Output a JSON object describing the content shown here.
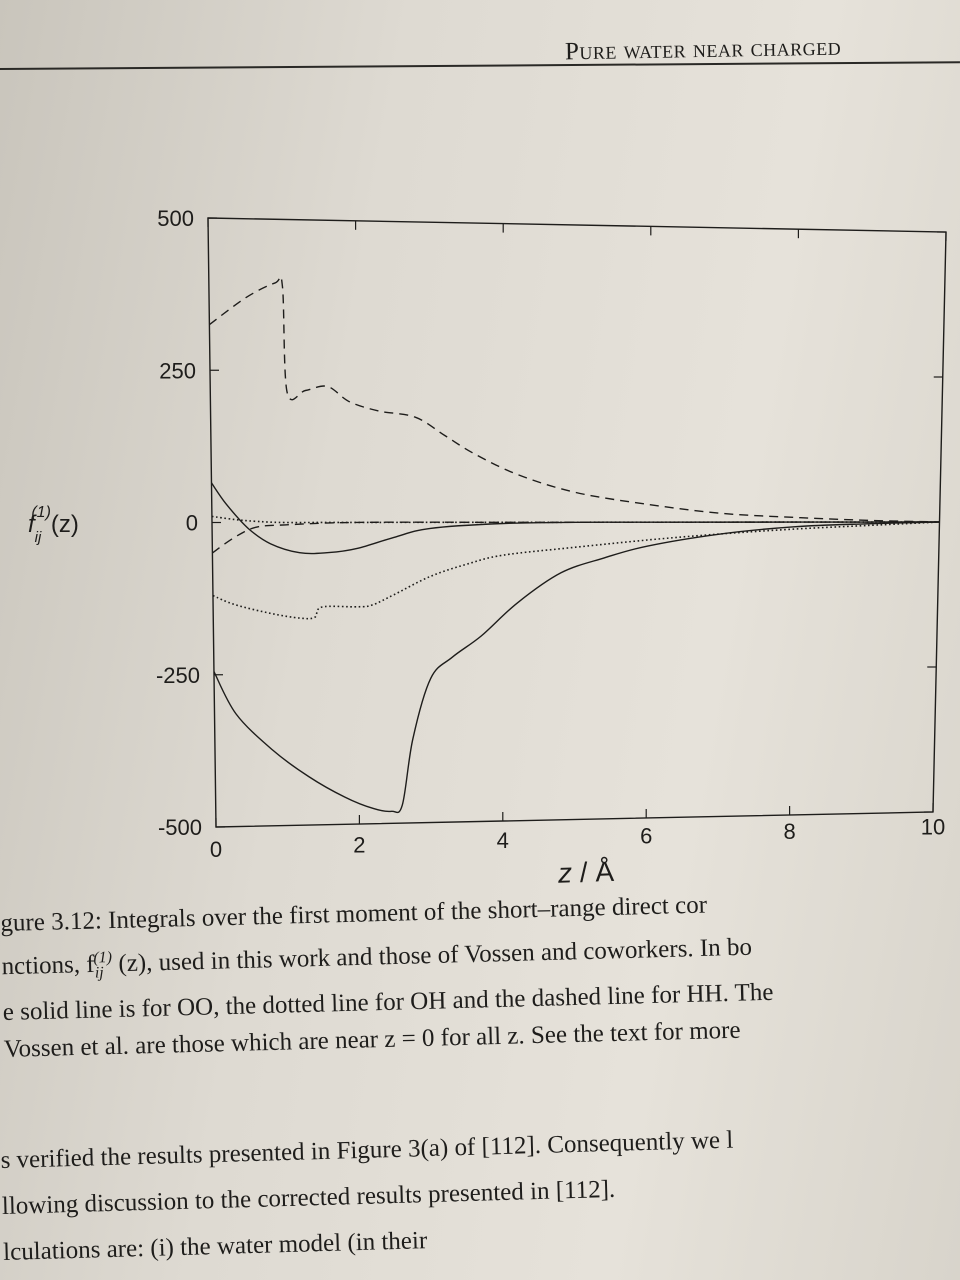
{
  "page": {
    "running_head": "Pure water near charged",
    "caption_lines": [
      "gure 3.12: Integrals over the first moment of the short–range direct cor",
      "nctions, f",
      "e solid line is for OO, the dotted line for OH and the dashed line for HH. The",
      "Vossen et al. are those which are near z = 0 for all z. See the text for more"
    ],
    "caption_fn_tail": "(z), used in this work and those of Vossen and coworkers. In bo",
    "body_lines": [
      "s verified the results presented in Figure 3(a) of [112]. Consequently we l",
      "llowing discussion to the corrected results presented in [112].",
      "lculations are: (i) the water model (in their"
    ]
  },
  "chart_data": {
    "type": "line",
    "ylabel": "f_ij^(1)(z)",
    "xlabel": "z / Å",
    "xlim": [
      0,
      10
    ],
    "ylim": [
      -500,
      500
    ],
    "x_ticks": [
      "0",
      "2",
      "4",
      "6",
      "8",
      "10"
    ],
    "y_ticks": [
      "500",
      "250",
      "0",
      "-250",
      "-500"
    ],
    "grid": false,
    "series": [
      {
        "style": "solid",
        "x": [
          0,
          0.3,
          0.8,
          1.3,
          1.8,
          2.2,
          2.45,
          2.6,
          2.75,
          3.0,
          3.3,
          3.7,
          4.2,
          4.8,
          5.4,
          6.0,
          7.0,
          8.0,
          9.0,
          10.0
        ],
        "y": [
          -245,
          -315,
          -375,
          -420,
          -455,
          -475,
          -480,
          -470,
          -360,
          -260,
          -225,
          -190,
          -135,
          -85,
          -60,
          -40,
          -20,
          -8,
          -3,
          0
        ]
      },
      {
        "style": "solid",
        "x": [
          0,
          0.2,
          0.5,
          0.8,
          1.2,
          1.6,
          2.0,
          2.5,
          3.0,
          4.0,
          5.0,
          6.0,
          8.0,
          10.0
        ],
        "y": [
          65,
          30,
          -10,
          -35,
          -50,
          -50,
          -43,
          -25,
          -10,
          -2,
          0,
          0,
          0,
          0
        ]
      },
      {
        "style": "dotted",
        "x": [
          0,
          0.3,
          0.8,
          1.2,
          1.4,
          1.5,
          2.0,
          2.2,
          2.5,
          3.0,
          3.5,
          4.0,
          5.0,
          6.0,
          7.0,
          8.0,
          9.0,
          10.0
        ],
        "y": [
          -120,
          -135,
          -150,
          -158,
          -157,
          -140,
          -140,
          -137,
          -120,
          -90,
          -70,
          -55,
          -42,
          -30,
          -20,
          -12,
          -6,
          0
        ]
      },
      {
        "style": "dashed",
        "x": [
          0,
          0.5,
          0.9,
          1.0,
          1.05,
          1.3,
          1.6,
          1.9,
          2.3,
          2.8,
          3.2,
          3.6,
          4.2,
          5.0,
          6.0,
          7.0,
          8.0,
          9.0,
          10.0
        ],
        "y": [
          325,
          370,
          395,
          390,
          215,
          218,
          225,
          200,
          185,
          175,
          145,
          115,
          80,
          50,
          30,
          15,
          8,
          3,
          0
        ]
      },
      {
        "style": "dashed",
        "x": [
          0,
          0.3,
          0.6,
          1.0,
          2.0,
          4.0,
          6.0,
          8.0,
          10.0
        ],
        "y": [
          -50,
          -25,
          -8,
          -4,
          0,
          0,
          0,
          0,
          0
        ]
      },
      {
        "style": "dotted",
        "x": [
          0,
          0.3,
          0.6,
          1.0,
          2.0,
          4.0,
          6.0,
          8.0,
          10.0
        ],
        "y": [
          10,
          5,
          2,
          0,
          0,
          0,
          0,
          0,
          0
        ]
      }
    ]
  }
}
